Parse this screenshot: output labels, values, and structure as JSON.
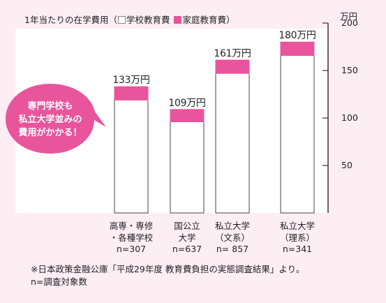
{
  "legend": {
    "prefix": "1年当たりの在学費用（",
    "school": "学校教育費",
    "home": "家庭教育費",
    "suffix": "）"
  },
  "speech_bubble": {
    "line1": "専門学校も",
    "line2": "私立大学並みの",
    "line3": "費用がかかる！"
  },
  "note": {
    "line1": "※日本政策金融公庫「平成29年度 教育費負担の実態調査結果」より。",
    "line2": "n=調査対象数"
  },
  "chart_data": {
    "type": "bar",
    "stacked": true,
    "unit": "万円",
    "ylim": [
      0,
      200
    ],
    "yticks": [
      50,
      100,
      150,
      200
    ],
    "grid": false,
    "categories": [
      [
        "高専・専修",
        "・各種学校",
        "n=307"
      ],
      [
        "国公立",
        "大学",
        "n=637"
      ],
      [
        "私立大学",
        "（文系）",
        "n= 857"
      ],
      [
        "私立大学",
        "（理系）",
        "n=341"
      ]
    ],
    "totals_labels": [
      "133万円",
      "109万円",
      "161万円",
      "180万円"
    ],
    "series": [
      {
        "name": "学校教育費",
        "values": [
          119,
          96,
          147,
          166
        ],
        "color": "#ffffff"
      },
      {
        "name": "家庭教育費",
        "values": [
          14,
          13,
          14,
          14
        ],
        "color": "#e8559c"
      }
    ]
  }
}
